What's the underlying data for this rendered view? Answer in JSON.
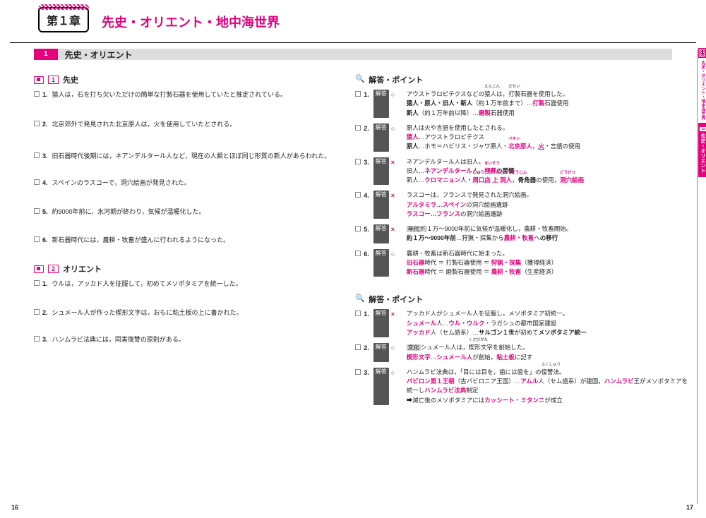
{
  "chapter": {
    "box": "第１章",
    "title": "先史・オリエント・地中海世界"
  },
  "section": {
    "num": "1",
    "title": "先史・オリエント"
  },
  "sub1": {
    "num": "1",
    "title": "先史"
  },
  "sub2": {
    "num": "2",
    "title": "オリエント"
  },
  "ansHeader": "解答・ポイント",
  "leftQ1": [
    {
      "n": "1.",
      "t": "猿人は，石を打ち欠いただけの簡単な打製石器を使用していたと推定されている。"
    },
    {
      "n": "2.",
      "t": "北京郊外で発見された北京原人は，火を使用していたとされる。"
    },
    {
      "n": "3.",
      "t": "旧石器時代後期には，ネアンデルタール人など，現在の人類とほぼ同じ形質の新人があらわれた。"
    },
    {
      "n": "4.",
      "t": "スペインのラスコーで，洞穴絵画が発見された。"
    },
    {
      "n": "5.",
      "t": "約9000年前に，氷河期が終わり，気候が温暖化した。"
    },
    {
      "n": "6.",
      "t": "新石器時代には，農耕・牧畜が盛んに行われるようになった。"
    }
  ],
  "leftQ2": [
    {
      "n": "1.",
      "t": "ウルは，アッカド人を征服して，初めてメソポタミアを統一した。"
    },
    {
      "n": "2.",
      "t": "シュメール人が作った楔形文字は，おもに粘土板の上に書かれた。"
    },
    {
      "n": "3.",
      "t": "ハンムラビ法典には，同害復讐の原則がある。"
    }
  ],
  "page": {
    "l": "16",
    "r": "17"
  }
}
